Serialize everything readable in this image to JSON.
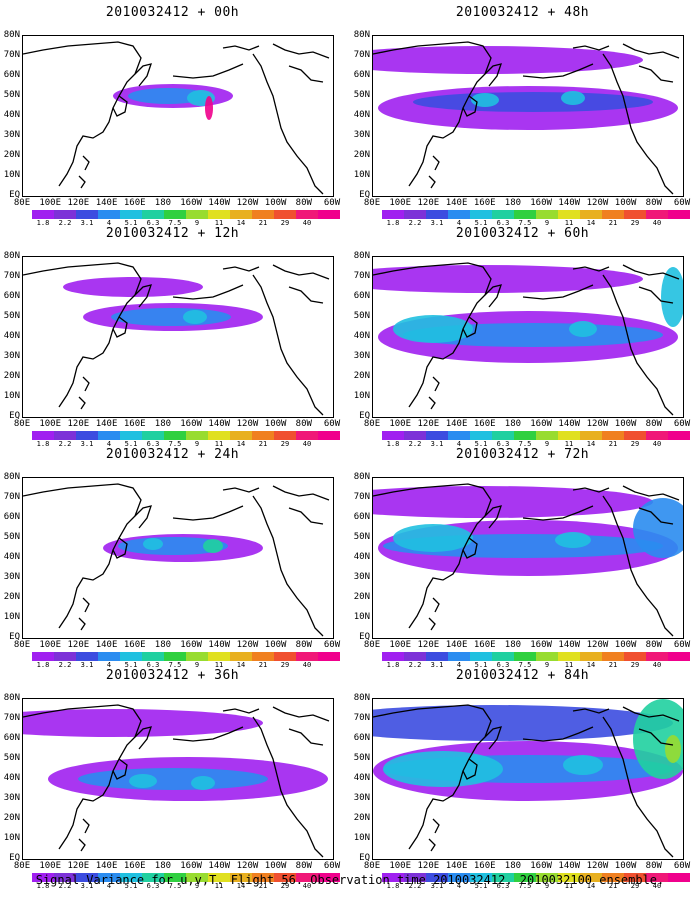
{
  "caption": "Signal Variance for u,v,T. Flight 56. Observation time 2010032412. 2010032100 ensemble.",
  "lat_labels": [
    "80N",
    "70N",
    "60N",
    "50N",
    "40N",
    "30N",
    "20N",
    "10N",
    "EQ"
  ],
  "lon_labels": [
    "80E",
    "100E",
    "120E",
    "140E",
    "160E",
    "180",
    "160W",
    "140W",
    "120W",
    "100W",
    "80W",
    "60W"
  ],
  "colorbar": {
    "colors": [
      "#a020f0",
      "#7d32d8",
      "#3c4ce0",
      "#2a8cf0",
      "#20c0e0",
      "#20d0a0",
      "#30d040",
      "#98dc30",
      "#e0e020",
      "#e8b020",
      "#f08020",
      "#f05030",
      "#f01878",
      "#f0008c"
    ],
    "labels": [
      "1.8",
      "2.2",
      "3.1",
      "4",
      "5.1",
      "6.3",
      "7.5",
      "9",
      "11",
      "14",
      "21",
      "29",
      "40"
    ]
  },
  "panels": [
    {
      "title": "2010032412 + 00h",
      "level": 0
    },
    {
      "title": "2010032412 + 48h",
      "level": 4
    },
    {
      "title": "2010032412 + 12h",
      "level": 1
    },
    {
      "title": "2010032412 + 60h",
      "level": 5
    },
    {
      "title": "2010032412 + 24h",
      "level": 2
    },
    {
      "title": "2010032412 + 72h",
      "level": 6
    },
    {
      "title": "2010032412 + 36h",
      "level": 3
    },
    {
      "title": "2010032412 + 84h",
      "level": 7
    }
  ]
}
